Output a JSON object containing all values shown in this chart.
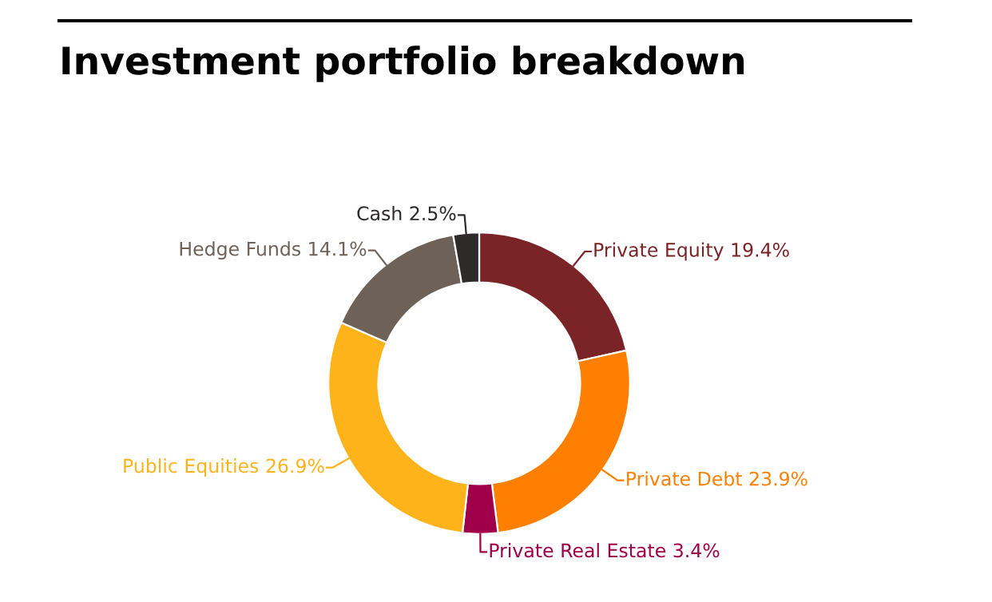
{
  "chart_data": {
    "type": "donut",
    "title": "Investment portfolio breakdown",
    "categories": [
      "Private Equity",
      "Private Debt",
      "Private Real Estate",
      "Public Equities",
      "Hedge Funds",
      "Cash"
    ],
    "values": [
      19.4,
      23.9,
      3.4,
      26.9,
      14.1,
      2.5
    ],
    "value_labels": [
      "19.4%",
      "23.9%",
      "3.4%",
      "26.9%",
      "14.1%",
      "2.5%"
    ],
    "colors": [
      "#7b2428",
      "#ff8000",
      "#a0004a",
      "#ffb31a",
      "#6e6158",
      "#2e2a2a"
    ],
    "legend": false
  }
}
